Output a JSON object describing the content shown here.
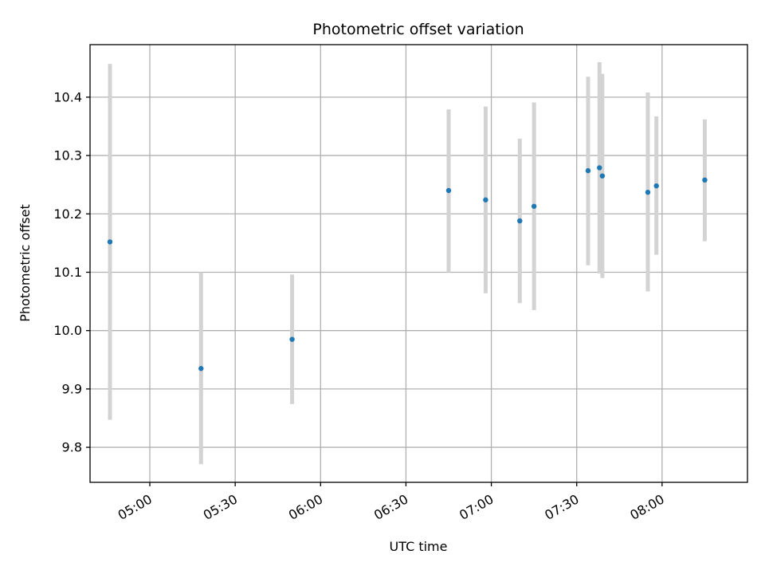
{
  "chart_data": {
    "type": "scatter",
    "title": "Photometric offset variation",
    "xlabel": "UTC time",
    "ylabel": "Photometric offset",
    "x_ticks": [
      "05:00",
      "05:30",
      "06:00",
      "06:30",
      "07:00",
      "07:30",
      "08:00"
    ],
    "y_ticks": [
      "9.8",
      "9.9",
      "10.0",
      "10.1",
      "10.2",
      "10.3",
      "10.4"
    ],
    "xlim": [
      "04:39",
      "08:30"
    ],
    "ylim": [
      9.74,
      10.49
    ],
    "grid": true,
    "points": [
      {
        "x": "04:46",
        "y": 10.152,
        "err_low": 9.847,
        "err_high": 10.457
      },
      {
        "x": "05:18",
        "y": 9.935,
        "err_low": 9.771,
        "err_high": 10.1
      },
      {
        "x": "05:50",
        "y": 9.985,
        "err_low": 9.874,
        "err_high": 10.096
      },
      {
        "x": "06:45",
        "y": 10.24,
        "err_low": 10.1,
        "err_high": 10.379
      },
      {
        "x": "06:58",
        "y": 10.224,
        "err_low": 10.064,
        "err_high": 10.384
      },
      {
        "x": "07:10",
        "y": 10.188,
        "err_low": 10.047,
        "err_high": 10.329
      },
      {
        "x": "07:15",
        "y": 10.213,
        "err_low": 10.035,
        "err_high": 10.391
      },
      {
        "x": "07:34",
        "y": 10.274,
        "err_low": 10.112,
        "err_high": 10.435
      },
      {
        "x": "07:38",
        "y": 10.279,
        "err_low": 10.098,
        "err_high": 10.46
      },
      {
        "x": "07:39",
        "y": 10.265,
        "err_low": 10.09,
        "err_high": 10.44
      },
      {
        "x": "07:55",
        "y": 10.237,
        "err_low": 10.067,
        "err_high": 10.408
      },
      {
        "x": "07:58",
        "y": 10.248,
        "err_low": 10.13,
        "err_high": 10.367
      },
      {
        "x": "08:15",
        "y": 10.258,
        "err_low": 10.153,
        "err_high": 10.362
      }
    ]
  }
}
